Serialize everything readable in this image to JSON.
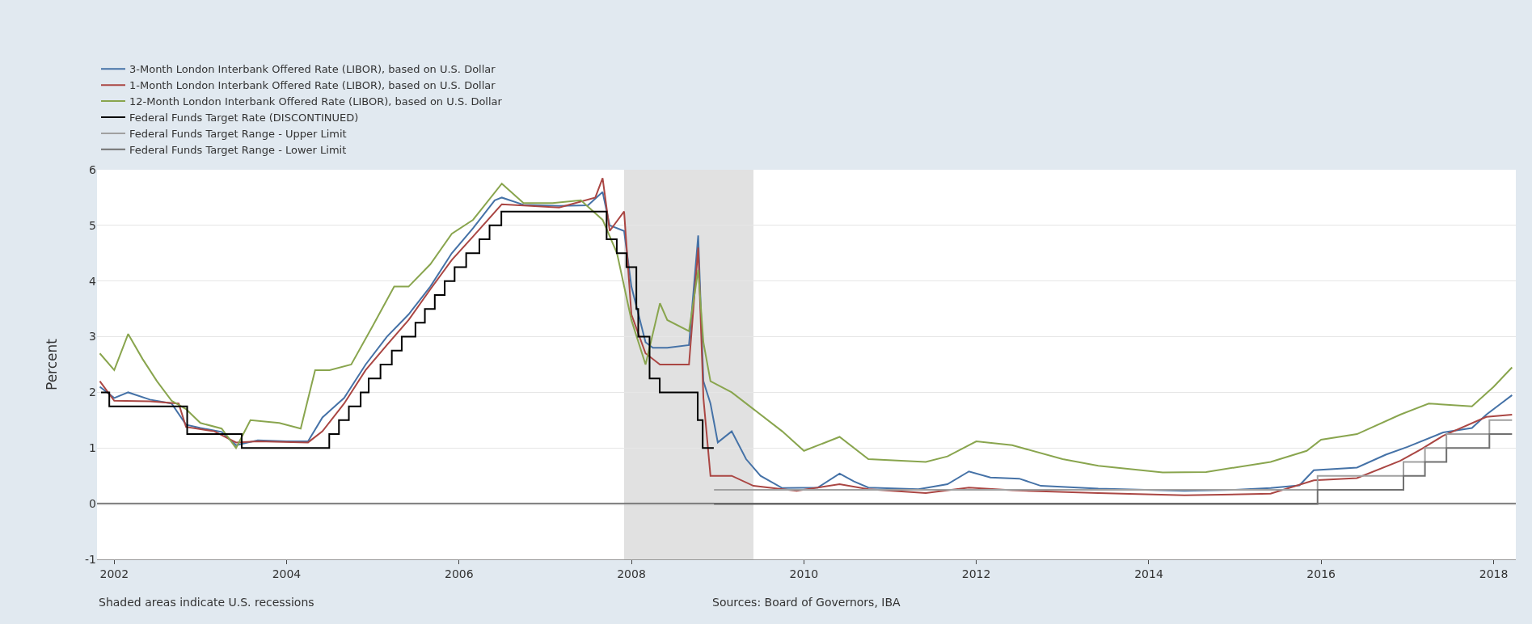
{
  "chart_data": {
    "type": "line",
    "ylabel": "Percent",
    "xlim": [
      "2001-10-20",
      "2018-04-05"
    ],
    "ylim": [
      -1,
      6
    ],
    "yticks": [
      -1,
      0,
      1,
      2,
      3,
      4,
      5,
      6
    ],
    "xticks": [
      {
        "value": "2002-01-01",
        "label": "2002"
      },
      {
        "value": "2004-01-01",
        "label": "2004"
      },
      {
        "value": "2006-01-01",
        "label": "2006"
      },
      {
        "value": "2008-01-01",
        "label": "2008"
      },
      {
        "value": "2010-01-01",
        "label": "2010"
      },
      {
        "value": "2012-01-01",
        "label": "2012"
      },
      {
        "value": "2014-01-01",
        "label": "2014"
      },
      {
        "value": "2016-01-01",
        "label": "2016"
      },
      {
        "value": "2018-01-01",
        "label": "2018"
      }
    ],
    "grid": "y",
    "legend": "top left",
    "series": [
      {
        "name": "3-Month London Interbank Offered Rate (LIBOR), based on U.S. Dollar",
        "color": "#4572a7",
        "x": [
          "2001-11",
          "2002-01",
          "2002-03",
          "2002-06",
          "2002-09",
          "2002-11",
          "2003-01",
          "2003-04",
          "2003-06",
          "2003-09",
          "2004-01",
          "2004-04",
          "2004-06",
          "2004-09",
          "2004-12",
          "2005-03",
          "2005-06",
          "2005-09",
          "2005-12",
          "2006-03",
          "2006-06",
          "2006-07",
          "2006-10",
          "2007-03",
          "2007-07",
          "2007-09",
          "2007-10",
          "2007-12",
          "2008-01",
          "2008-03",
          "2008-04",
          "2008-06",
          "2008-09",
          "2008-10-10",
          "2008-11",
          "2008-12",
          "2009-01",
          "2009-03",
          "2009-05",
          "2009-07",
          "2009-10",
          "2010-03",
          "2010-06",
          "2010-08",
          "2010-10",
          "2011-05",
          "2011-09",
          "2011-12",
          "2012-03",
          "2012-07",
          "2012-10",
          "2013-06",
          "2014-06",
          "2015-01",
          "2015-06",
          "2015-10",
          "2015-12",
          "2016-06",
          "2016-10",
          "2017-01",
          "2017-06",
          "2017-10",
          "2017-12",
          "2018-02",
          "2018-03-20"
        ],
        "values": [
          2.1,
          1.9,
          2.0,
          1.87,
          1.8,
          1.42,
          1.36,
          1.29,
          1.05,
          1.14,
          1.12,
          1.12,
          1.55,
          1.9,
          2.5,
          3.0,
          3.4,
          3.9,
          4.5,
          4.95,
          5.45,
          5.5,
          5.37,
          5.35,
          5.36,
          5.6,
          5.0,
          4.9,
          3.9,
          2.9,
          2.8,
          2.8,
          2.85,
          4.82,
          2.2,
          1.8,
          1.1,
          1.3,
          0.8,
          0.5,
          0.28,
          0.29,
          0.54,
          0.4,
          0.29,
          0.26,
          0.35,
          0.58,
          0.47,
          0.45,
          0.32,
          0.27,
          0.23,
          0.25,
          0.28,
          0.33,
          0.6,
          0.65,
          0.88,
          1.02,
          1.28,
          1.36,
          1.6,
          1.8,
          1.95
        ]
      },
      {
        "name": "1-Month London Interbank Offered Rate (LIBOR), based on U.S. Dollar",
        "color": "#aa4643",
        "x": [
          "2001-11",
          "2002-01",
          "2002-06",
          "2002-10",
          "2002-11",
          "2003-03",
          "2003-06",
          "2003-09",
          "2004-04",
          "2004-06",
          "2004-09",
          "2004-12",
          "2005-03",
          "2005-06",
          "2005-09",
          "2005-12",
          "2006-03",
          "2006-07",
          "2007-03",
          "2007-08",
          "2007-09",
          "2007-10",
          "2007-12",
          "2008-01",
          "2008-03",
          "2008-05",
          "2008-09",
          "2008-10-10",
          "2008-11",
          "2008-12",
          "2009-03",
          "2009-06",
          "2009-12",
          "2010-06",
          "2010-10",
          "2011-06",
          "2011-12",
          "2012-06",
          "2013-06",
          "2014-06",
          "2015-06",
          "2015-12",
          "2016-06",
          "2016-12",
          "2017-03",
          "2017-06",
          "2017-12",
          "2018-03-20"
        ],
        "values": [
          2.2,
          1.85,
          1.84,
          1.8,
          1.38,
          1.3,
          1.1,
          1.12,
          1.1,
          1.3,
          1.8,
          2.4,
          2.85,
          3.3,
          3.85,
          4.38,
          4.8,
          5.38,
          5.32,
          5.5,
          5.85,
          4.9,
          5.25,
          3.4,
          2.7,
          2.5,
          2.5,
          4.6,
          1.9,
          0.5,
          0.5,
          0.32,
          0.23,
          0.35,
          0.26,
          0.19,
          0.29,
          0.24,
          0.19,
          0.15,
          0.18,
          0.42,
          0.46,
          0.77,
          0.98,
          1.22,
          1.56,
          1.6
        ]
      },
      {
        "name": "12-Month London Interbank Offered Rate (LIBOR), based on U.S. Dollar",
        "color": "#89a54e",
        "x": [
          "2001-11",
          "2002-01",
          "2002-03",
          "2002-05",
          "2002-07",
          "2002-09",
          "2002-11",
          "2003-01",
          "2003-04",
          "2003-06",
          "2003-08",
          "2003-12",
          "2004-03",
          "2004-05",
          "2004-07",
          "2004-10",
          "2005-01",
          "2005-04",
          "2005-06",
          "2005-09",
          "2005-12",
          "2006-03",
          "2006-07",
          "2006-10",
          "2007-02",
          "2007-06",
          "2007-09",
          "2007-11",
          "2008-01",
          "2008-03",
          "2008-05",
          "2008-06",
          "2008-09",
          "2008-10-10",
          "2008-11",
          "2008-12",
          "2009-03",
          "2009-06",
          "2009-10",
          "2010-01",
          "2010-06",
          "2010-10",
          "2011-06",
          "2011-09",
          "2012-01",
          "2012-06",
          "2013-01",
          "2013-06",
          "2014-03",
          "2014-09",
          "2015-06",
          "2015-11",
          "2016-01",
          "2016-06",
          "2016-12",
          "2017-04",
          "2017-10",
          "2018-01",
          "2018-03-20"
        ],
        "values": [
          2.7,
          2.4,
          3.05,
          2.6,
          2.2,
          1.85,
          1.7,
          1.45,
          1.35,
          1.0,
          1.5,
          1.45,
          1.35,
          2.4,
          2.4,
          2.5,
          3.2,
          3.9,
          3.9,
          4.3,
          4.85,
          5.1,
          5.75,
          5.4,
          5.4,
          5.45,
          5.1,
          4.5,
          3.3,
          2.5,
          3.6,
          3.3,
          3.1,
          4.2,
          2.9,
          2.2,
          2.0,
          1.7,
          1.3,
          0.95,
          1.2,
          0.8,
          0.75,
          0.85,
          1.12,
          1.05,
          0.8,
          0.68,
          0.56,
          0.57,
          0.75,
          0.95,
          1.15,
          1.25,
          1.6,
          1.8,
          1.75,
          2.1,
          2.45
        ]
      },
      {
        "name": "Federal Funds Target Rate (DISCONTINUED)",
        "color": "#000000",
        "type": "step",
        "x": [
          "2001-11-06",
          "2001-12-11",
          "2002-11-06",
          "2003-06-25",
          "2004-06-30",
          "2004-08-10",
          "2004-09-21",
          "2004-11-10",
          "2004-12-14",
          "2005-02-02",
          "2005-03-22",
          "2005-05-03",
          "2005-06-30",
          "2005-08-09",
          "2005-09-20",
          "2005-11-01",
          "2005-12-13",
          "2006-01-31",
          "2006-03-28",
          "2006-05-10",
          "2006-06-29",
          "2007-09-18",
          "2007-10-31",
          "2007-12-11",
          "2008-01-22",
          "2008-01-30",
          "2008-03-18",
          "2008-04-30",
          "2008-10-08",
          "2008-10-29",
          "2008-12-15"
        ],
        "values": [
          2.0,
          1.75,
          1.25,
          1.0,
          1.25,
          1.5,
          1.75,
          2.0,
          2.25,
          2.5,
          2.75,
          3.0,
          3.25,
          3.5,
          3.75,
          4.0,
          4.25,
          4.5,
          4.75,
          5.0,
          5.25,
          4.75,
          4.5,
          4.25,
          3.5,
          3.0,
          2.25,
          2.0,
          1.5,
          1.0,
          1.0
        ]
      },
      {
        "name": "Federal Funds Target Range - Upper Limit",
        "color": "#a0a0a0",
        "type": "step",
        "x": [
          "2008-12-16",
          "2015-12-17",
          "2016-12-15",
          "2017-03-16",
          "2017-06-15",
          "2017-12-14",
          "2018-03-20"
        ],
        "values": [
          0.25,
          0.5,
          0.75,
          1.0,
          1.25,
          1.5,
          1.5
        ]
      },
      {
        "name": "Federal Funds Target Range - Lower Limit",
        "color": "#707070",
        "type": "step",
        "x": [
          "2008-12-16",
          "2015-12-17",
          "2016-12-15",
          "2017-03-16",
          "2017-06-15",
          "2017-12-14",
          "2018-03-20"
        ],
        "values": [
          0.0,
          0.25,
          0.5,
          0.75,
          1.0,
          1.25,
          1.25
        ]
      }
    ],
    "ref_lines": [
      {
        "axis": "y",
        "value": 0,
        "color": "#000000"
      }
    ],
    "bands": [
      {
        "axis": "x",
        "from": "2007-12-01",
        "to": "2009-06-01",
        "color": "#e1e1e1"
      }
    ],
    "annotations": [
      "Shaded areas indicate U.S. recessions",
      "Sources: Board of Governors, IBA"
    ]
  }
}
